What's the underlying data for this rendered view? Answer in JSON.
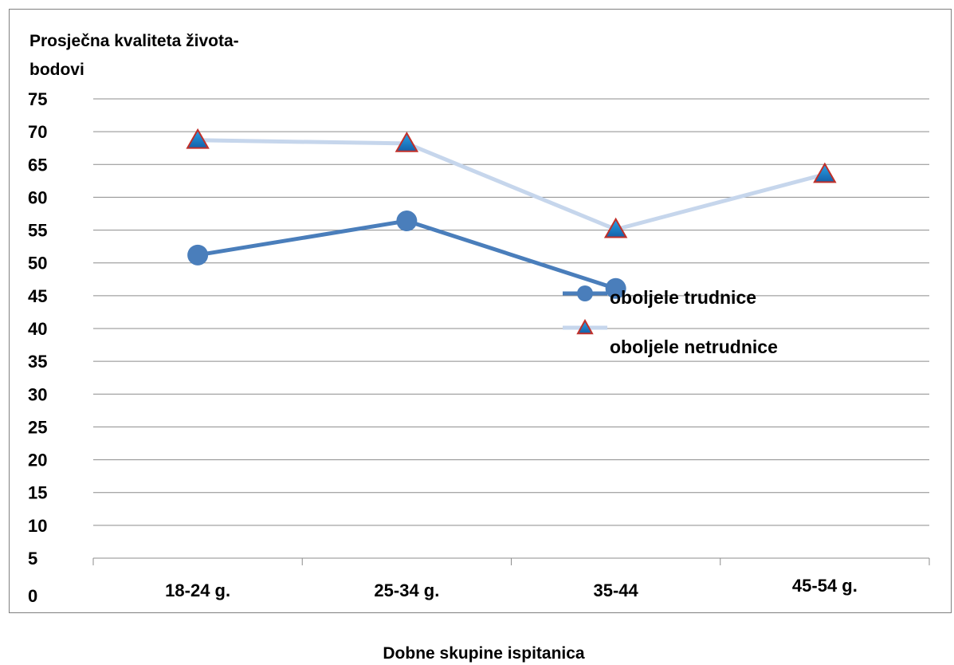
{
  "chart_data": {
    "type": "line",
    "title": "",
    "ylabel_lines": [
      "Prosječna kvaliteta života-",
      "bodovi"
    ],
    "xlabel": "Dobne skupine ispitanica",
    "categories": [
      "18-24 g.",
      "25-34 g.",
      "35-44",
      "45-54 g."
    ],
    "yticks": [
      0,
      5,
      10,
      15,
      20,
      25,
      30,
      35,
      40,
      45,
      50,
      55,
      60,
      65,
      70,
      75
    ],
    "ylim": [
      0,
      75
    ],
    "grid": true,
    "legend_position": "right",
    "series": [
      {
        "name": "oboljele trudnice",
        "values": [
          51.2,
          56.4,
          46.1,
          null
        ],
        "color": "#4a7ebb",
        "marker": "circle"
      },
      {
        "name": "oboljele netrudnice",
        "values": [
          68.7,
          68.2,
          55.1,
          63.5
        ],
        "color": "#c6d6ec",
        "marker": "triangle",
        "marker_fill_top": "#29a3e8",
        "marker_fill_bottom": "#1560a8",
        "marker_stroke": "#c0302a"
      }
    ]
  }
}
